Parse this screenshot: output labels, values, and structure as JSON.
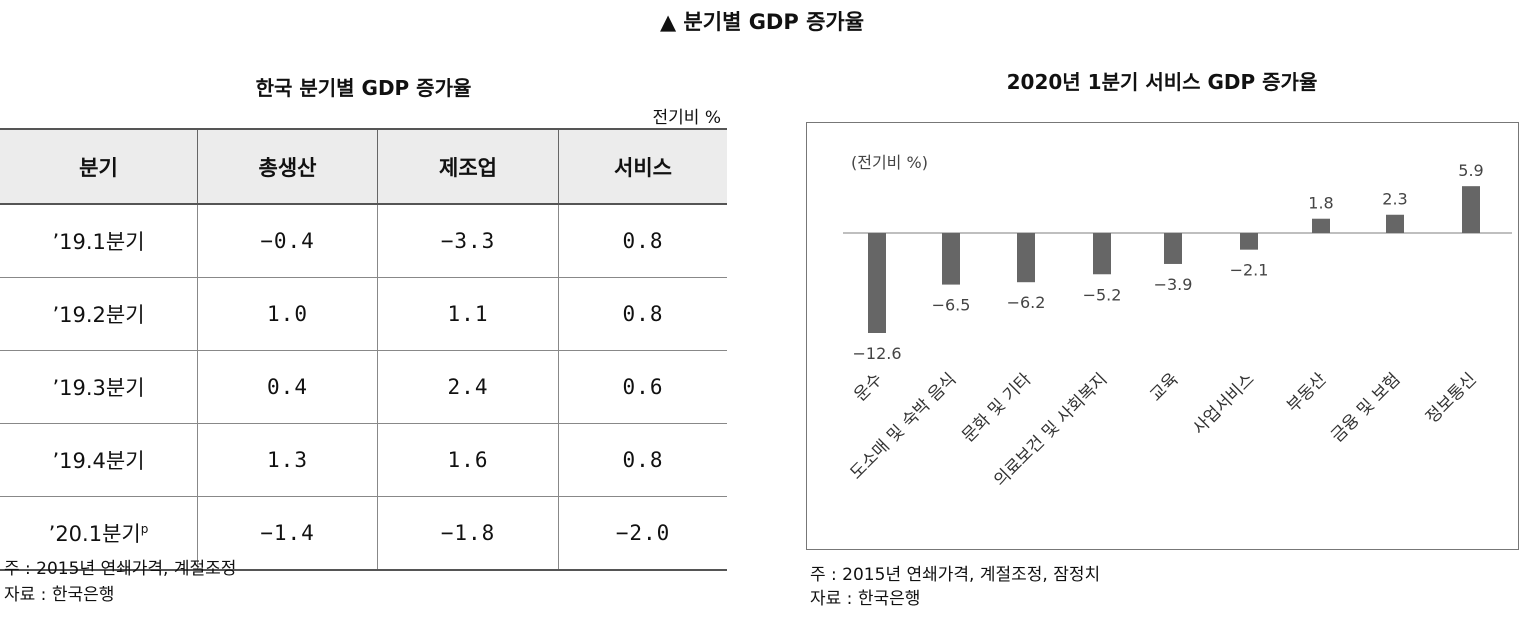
{
  "main_title": "▲ 분기별 GDP 증가율",
  "table": {
    "title": "한국 분기별 GDP 증가율",
    "unit": "전기비 %",
    "headers": [
      "분기",
      "총생산",
      "제조업",
      "서비스"
    ],
    "rows": [
      {
        "quarter": "’19.1분기",
        "sup": "",
        "total": "−0.4",
        "manufacturing": "−3.3",
        "services": "0.8"
      },
      {
        "quarter": "’19.2분기",
        "sup": "",
        "total": "1.0",
        "manufacturing": "1.1",
        "services": "0.8"
      },
      {
        "quarter": "’19.3분기",
        "sup": "",
        "total": "0.4",
        "manufacturing": "2.4",
        "services": "0.6"
      },
      {
        "quarter": "’19.4분기",
        "sup": "",
        "total": "1.3",
        "manufacturing": "1.6",
        "services": "0.8"
      },
      {
        "quarter": "’20.1분기",
        "sup": "p",
        "total": "−1.4",
        "manufacturing": "−1.8",
        "services": "−2.0"
      }
    ],
    "note": "주 : 2015년 연쇄가격, 계절조정",
    "source": "자료 : 한국은행"
  },
  "chart_data": {
    "type": "bar",
    "title": "2020년 1분기 서비스 GDP 증가율",
    "ylabel": "(전기비 %)",
    "xlabel": "",
    "categories": [
      "운수",
      "도소매 및 숙박 음식",
      "문화 및 기타",
      "의료보건 및 사회복지",
      "교육",
      "사업서비스",
      "부동산",
      "금융 및 보험",
      "정보통신"
    ],
    "values": [
      -12.6,
      -6.5,
      -6.2,
      -5.2,
      -3.9,
      -2.1,
      1.8,
      2.3,
      5.9
    ],
    "value_labels": [
      "−12.6",
      "−6.5",
      "−6.2",
      "−5.2",
      "−3.9",
      "−2.1",
      "1.8",
      "2.3",
      "5.9"
    ],
    "ylim": [
      -12.6,
      5.9
    ],
    "grid": false,
    "bar_color": "#666666",
    "note": "주 : 2015년 연쇄가격, 계절조정, 잠정치",
    "source": "자료 : 한국은행"
  }
}
